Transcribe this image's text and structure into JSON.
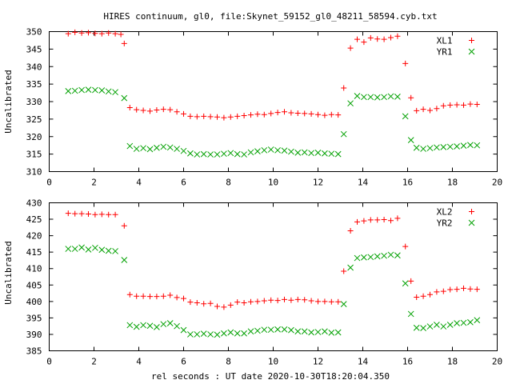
{
  "figure": {
    "title": "HIRES continuum, gl0, file:Skynet_59152_gl0_48211_58594.cyb.txt",
    "xlabel": "rel seconds : UT date 2020-10-30T18:20:04.350"
  },
  "colors": {
    "plus": "#ff0000",
    "cross": "#00a000",
    "axes": "#000000"
  },
  "chart_data": [
    {
      "type": "scatter",
      "title": "HIRES continuum, gl0, file:Skynet_59152_gl0_48211_58594.cyb.txt",
      "xlabel": "",
      "ylabel": "Uncalibrated",
      "xlim": [
        0,
        20
      ],
      "ylim": [
        310,
        350
      ],
      "xticks": [
        0,
        2,
        4,
        6,
        8,
        10,
        12,
        14,
        16,
        18,
        20
      ],
      "yticks": [
        310,
        315,
        320,
        325,
        330,
        335,
        340,
        345,
        350
      ],
      "grid": false,
      "legend": "top-right",
      "series": [
        {
          "name": "XL1",
          "marker": "plus",
          "color": "#ff0000",
          "points": [
            [
              0.85,
              349.4
            ],
            [
              1.15,
              349.8
            ],
            [
              1.45,
              349.6
            ],
            [
              1.75,
              349.7
            ],
            [
              2.05,
              349.5
            ],
            [
              2.35,
              349.4
            ],
            [
              2.65,
              349.6
            ],
            [
              2.95,
              349.4
            ],
            [
              3.2,
              349.2
            ],
            [
              3.35,
              346.6
            ],
            [
              3.6,
              328.3
            ],
            [
              3.9,
              327.7
            ],
            [
              4.2,
              327.5
            ],
            [
              4.5,
              327.3
            ],
            [
              4.8,
              327.6
            ],
            [
              5.1,
              327.8
            ],
            [
              5.4,
              327.7
            ],
            [
              5.7,
              327.1
            ],
            [
              6.0,
              326.5
            ],
            [
              6.3,
              325.8
            ],
            [
              6.6,
              325.7
            ],
            [
              6.9,
              325.8
            ],
            [
              7.2,
              325.7
            ],
            [
              7.5,
              325.6
            ],
            [
              7.8,
              325.4
            ],
            [
              8.1,
              325.6
            ],
            [
              8.4,
              325.8
            ],
            [
              8.7,
              326.0
            ],
            [
              9.0,
              326.2
            ],
            [
              9.3,
              326.4
            ],
            [
              9.6,
              326.3
            ],
            [
              9.9,
              326.6
            ],
            [
              10.2,
              326.9
            ],
            [
              10.5,
              327.1
            ],
            [
              10.8,
              326.8
            ],
            [
              11.1,
              326.7
            ],
            [
              11.4,
              326.6
            ],
            [
              11.7,
              326.5
            ],
            [
              12.0,
              326.3
            ],
            [
              12.3,
              326.1
            ],
            [
              12.6,
              326.3
            ],
            [
              12.9,
              326.2
            ],
            [
              13.15,
              333.9
            ],
            [
              13.45,
              345.3
            ],
            [
              13.75,
              347.8
            ],
            [
              14.05,
              347.0
            ],
            [
              14.35,
              348.2
            ],
            [
              14.65,
              347.9
            ],
            [
              14.95,
              347.8
            ],
            [
              15.25,
              348.3
            ],
            [
              15.55,
              348.7
            ],
            [
              15.9,
              340.9
            ],
            [
              16.15,
              331.1
            ],
            [
              16.4,
              327.4
            ],
            [
              16.7,
              327.8
            ],
            [
              17.0,
              327.5
            ],
            [
              17.3,
              328.0
            ],
            [
              17.6,
              328.8
            ],
            [
              17.9,
              329.0
            ],
            [
              18.2,
              329.1
            ],
            [
              18.5,
              329.0
            ],
            [
              18.8,
              329.3
            ],
            [
              19.1,
              329.2
            ]
          ]
        },
        {
          "name": "YR1",
          "marker": "cross",
          "color": "#00a000",
          "points": [
            [
              0.85,
              333.0
            ],
            [
              1.15,
              333.1
            ],
            [
              1.45,
              333.3
            ],
            [
              1.75,
              333.4
            ],
            [
              2.05,
              333.3
            ],
            [
              2.35,
              333.2
            ],
            [
              2.65,
              332.9
            ],
            [
              2.95,
              332.7
            ],
            [
              3.35,
              331.0
            ],
            [
              3.6,
              317.3
            ],
            [
              3.9,
              316.5
            ],
            [
              4.2,
              316.7
            ],
            [
              4.5,
              316.4
            ],
            [
              4.8,
              316.8
            ],
            [
              5.1,
              317.1
            ],
            [
              5.4,
              316.9
            ],
            [
              5.7,
              316.5
            ],
            [
              6.0,
              315.9
            ],
            [
              6.3,
              315.2
            ],
            [
              6.6,
              314.9
            ],
            [
              6.9,
              315.0
            ],
            [
              7.2,
              314.9
            ],
            [
              7.5,
              314.9
            ],
            [
              7.8,
              315.1
            ],
            [
              8.1,
              315.3
            ],
            [
              8.4,
              315.0
            ],
            [
              8.7,
              314.9
            ],
            [
              9.0,
              315.5
            ],
            [
              9.3,
              315.8
            ],
            [
              9.6,
              316.1
            ],
            [
              9.9,
              316.3
            ],
            [
              10.2,
              316.1
            ],
            [
              10.5,
              316.0
            ],
            [
              10.8,
              315.7
            ],
            [
              11.1,
              315.4
            ],
            [
              11.4,
              315.5
            ],
            [
              11.7,
              315.3
            ],
            [
              12.0,
              315.4
            ],
            [
              12.3,
              315.2
            ],
            [
              12.6,
              315.1
            ],
            [
              12.9,
              315.0
            ],
            [
              13.15,
              320.7
            ],
            [
              13.45,
              329.5
            ],
            [
              13.75,
              331.6
            ],
            [
              14.05,
              331.3
            ],
            [
              14.35,
              331.3
            ],
            [
              14.65,
              331.2
            ],
            [
              14.95,
              331.3
            ],
            [
              15.25,
              331.5
            ],
            [
              15.55,
              331.4
            ],
            [
              15.9,
              325.8
            ],
            [
              16.15,
              319.0
            ],
            [
              16.4,
              316.8
            ],
            [
              16.7,
              316.5
            ],
            [
              17.0,
              316.7
            ],
            [
              17.3,
              316.9
            ],
            [
              17.6,
              317.0
            ],
            [
              17.9,
              317.1
            ],
            [
              18.2,
              317.2
            ],
            [
              18.5,
              317.4
            ],
            [
              18.8,
              317.6
            ],
            [
              19.1,
              317.5
            ]
          ]
        }
      ]
    },
    {
      "type": "scatter",
      "title": "",
      "xlabel": "rel seconds : UT date 2020-10-30T18:20:04.350",
      "ylabel": "Uncalibrated",
      "xlim": [
        0,
        20
      ],
      "ylim": [
        385,
        430
      ],
      "xticks": [
        0,
        2,
        4,
        6,
        8,
        10,
        12,
        14,
        16,
        18,
        20
      ],
      "yticks": [
        385,
        390,
        395,
        400,
        405,
        410,
        415,
        420,
        425,
        430
      ],
      "grid": false,
      "legend": "top-right",
      "series": [
        {
          "name": "XL2",
          "marker": "plus",
          "color": "#ff0000",
          "points": [
            [
              0.85,
              426.8
            ],
            [
              1.15,
              426.7
            ],
            [
              1.45,
              426.7
            ],
            [
              1.75,
              426.6
            ],
            [
              2.05,
              426.4
            ],
            [
              2.35,
              426.5
            ],
            [
              2.65,
              426.4
            ],
            [
              2.95,
              426.4
            ],
            [
              3.35,
              423.0
            ],
            [
              3.6,
              402.1
            ],
            [
              3.9,
              401.6
            ],
            [
              4.2,
              401.6
            ],
            [
              4.5,
              401.5
            ],
            [
              4.8,
              401.5
            ],
            [
              5.1,
              401.6
            ],
            [
              5.4,
              401.9
            ],
            [
              5.7,
              401.2
            ],
            [
              6.0,
              400.9
            ],
            [
              6.3,
              399.8
            ],
            [
              6.6,
              399.6
            ],
            [
              6.9,
              399.3
            ],
            [
              7.2,
              399.4
            ],
            [
              7.5,
              398.5
            ],
            [
              7.8,
              398.3
            ],
            [
              8.1,
              398.9
            ],
            [
              8.4,
              399.8
            ],
            [
              8.7,
              399.6
            ],
            [
              9.0,
              399.9
            ],
            [
              9.3,
              400.0
            ],
            [
              9.6,
              400.2
            ],
            [
              9.9,
              400.4
            ],
            [
              10.2,
              400.3
            ],
            [
              10.5,
              400.6
            ],
            [
              10.8,
              400.4
            ],
            [
              11.1,
              400.6
            ],
            [
              11.4,
              400.5
            ],
            [
              11.7,
              400.2
            ],
            [
              12.0,
              400.0
            ],
            [
              12.3,
              400.0
            ],
            [
              12.6,
              399.9
            ],
            [
              12.9,
              399.9
            ],
            [
              13.15,
              409.2
            ],
            [
              13.45,
              421.5
            ],
            [
              13.75,
              424.2
            ],
            [
              14.05,
              424.5
            ],
            [
              14.35,
              424.8
            ],
            [
              14.65,
              424.8
            ],
            [
              14.95,
              424.9
            ],
            [
              15.25,
              424.6
            ],
            [
              15.55,
              425.3
            ],
            [
              15.9,
              416.7
            ],
            [
              16.15,
              406.2
            ],
            [
              16.4,
              401.3
            ],
            [
              16.7,
              401.6
            ],
            [
              17.0,
              402.1
            ],
            [
              17.3,
              402.9
            ],
            [
              17.6,
              403.1
            ],
            [
              17.9,
              403.6
            ],
            [
              18.2,
              403.7
            ],
            [
              18.5,
              404.0
            ],
            [
              18.8,
              403.8
            ],
            [
              19.1,
              403.7
            ]
          ]
        },
        {
          "name": "YR2",
          "marker": "cross",
          "color": "#00a000",
          "points": [
            [
              0.85,
              416.0
            ],
            [
              1.15,
              416.0
            ],
            [
              1.45,
              416.4
            ],
            [
              1.75,
              415.8
            ],
            [
              2.05,
              416.3
            ],
            [
              2.35,
              415.7
            ],
            [
              2.65,
              415.4
            ],
            [
              2.95,
              415.3
            ],
            [
              3.35,
              412.6
            ],
            [
              3.6,
              392.8
            ],
            [
              3.9,
              392.3
            ],
            [
              4.2,
              392.8
            ],
            [
              4.5,
              392.6
            ],
            [
              4.8,
              392.2
            ],
            [
              5.1,
              393.1
            ],
            [
              5.4,
              393.4
            ],
            [
              5.7,
              392.5
            ],
            [
              6.0,
              391.3
            ],
            [
              6.3,
              390.0
            ],
            [
              6.6,
              390.0
            ],
            [
              6.9,
              390.2
            ],
            [
              7.2,
              390.0
            ],
            [
              7.5,
              389.9
            ],
            [
              7.8,
              390.3
            ],
            [
              8.1,
              390.6
            ],
            [
              8.4,
              390.3
            ],
            [
              8.7,
              390.3
            ],
            [
              9.0,
              390.9
            ],
            [
              9.3,
              391.1
            ],
            [
              9.6,
              391.4
            ],
            [
              9.9,
              391.4
            ],
            [
              10.2,
              391.5
            ],
            [
              10.5,
              391.5
            ],
            [
              10.8,
              391.3
            ],
            [
              11.1,
              390.9
            ],
            [
              11.4,
              390.9
            ],
            [
              11.7,
              390.6
            ],
            [
              12.0,
              390.7
            ],
            [
              12.3,
              390.9
            ],
            [
              12.6,
              390.5
            ],
            [
              12.9,
              390.6
            ],
            [
              13.15,
              399.2
            ],
            [
              13.45,
              410.3
            ],
            [
              13.75,
              413.2
            ],
            [
              14.05,
              413.4
            ],
            [
              14.35,
              413.5
            ],
            [
              14.65,
              413.7
            ],
            [
              14.95,
              413.9
            ],
            [
              15.25,
              414.2
            ],
            [
              15.55,
              414.0
            ],
            [
              15.9,
              405.5
            ],
            [
              16.15,
              396.2
            ],
            [
              16.4,
              392.0
            ],
            [
              16.7,
              391.9
            ],
            [
              17.0,
              392.4
            ],
            [
              17.3,
              392.9
            ],
            [
              17.6,
              392.4
            ],
            [
              17.9,
              392.9
            ],
            [
              18.2,
              393.4
            ],
            [
              18.5,
              393.5
            ],
            [
              18.8,
              393.7
            ],
            [
              19.1,
              394.3
            ]
          ]
        }
      ]
    }
  ]
}
